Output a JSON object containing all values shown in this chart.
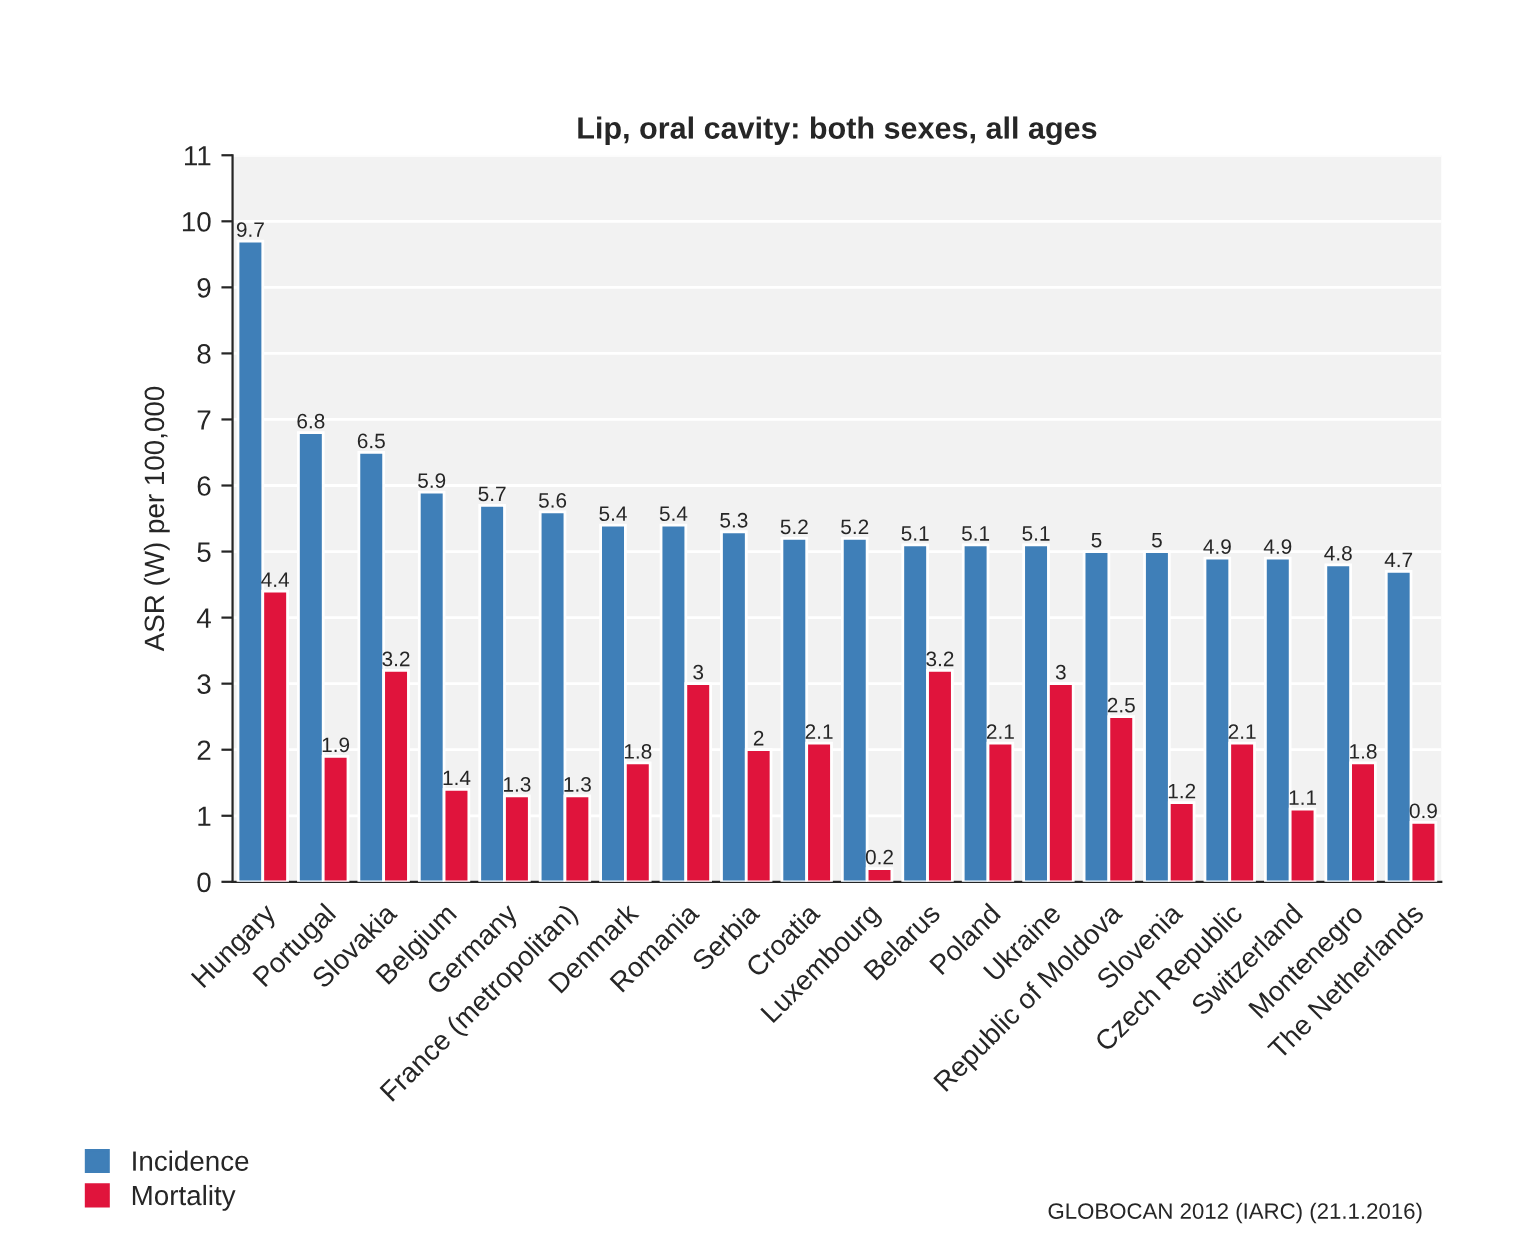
{
  "chart_data": {
    "type": "bar",
    "title": "Lip, oral cavity: both sexes, all ages",
    "ylabel": "ASR (W) per 100,000",
    "categories": [
      "Hungary",
      "Portugal",
      "Slovakia",
      "Belgium",
      "Germany",
      "France (metropolitan)",
      "Denmark",
      "Romania",
      "Serbia",
      "Croatia",
      "Luxembourg",
      "Belarus",
      "Poland",
      "Ukraine",
      "Republic of Moldova",
      "Slovenia",
      "Czech Republic",
      "Switzerland",
      "Montenegro",
      "The Netherlands"
    ],
    "series": [
      {
        "name": "Incidence",
        "color": "#3f7fb8",
        "values": [
          9.7,
          6.8,
          6.5,
          5.9,
          5.7,
          5.6,
          5.4,
          5.4,
          5.3,
          5.2,
          5.2,
          5.1,
          5.1,
          5.1,
          5,
          5,
          4.9,
          4.9,
          4.8,
          4.7
        ]
      },
      {
        "name": "Mortality",
        "color": "#e0143c",
        "values": [
          4.4,
          1.9,
          3.2,
          1.4,
          1.3,
          1.3,
          1.8,
          3,
          2,
          2.1,
          0.2,
          3.2,
          2.1,
          3,
          2.5,
          1.2,
          2.1,
          1.1,
          1.8,
          0.9
        ]
      }
    ],
    "ylim": [
      0,
      11
    ],
    "yticks": [
      0,
      1,
      2,
      3,
      4,
      5,
      6,
      7,
      8,
      9,
      10,
      11
    ],
    "grid": "y",
    "legend": "bottom left",
    "data_labels": true,
    "annotations": [
      "GLOBOCAN 2012 (IARC) (21.1.2016)"
    ]
  }
}
